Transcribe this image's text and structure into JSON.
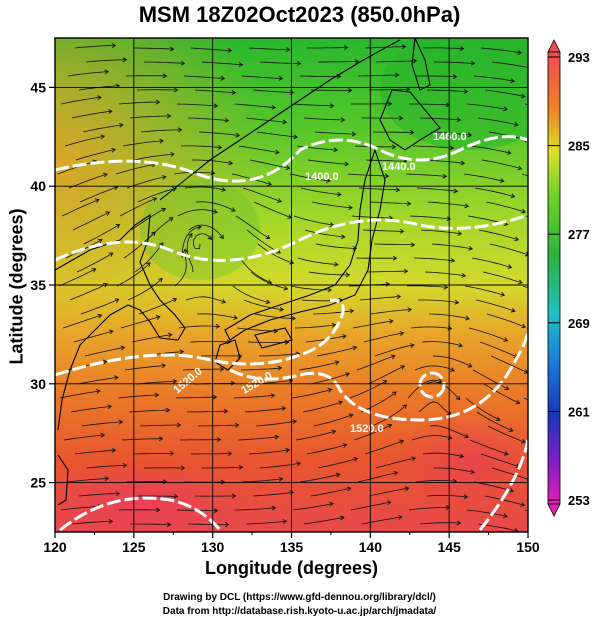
{
  "title": "MSM 18Z02Oct2023 (850.0hPa)",
  "axes": {
    "xlabel": "Longitude (degrees)",
    "ylabel": "Latitude  (degrees)",
    "x_ticks": [
      "120",
      "125",
      "130",
      "135",
      "140",
      "145",
      "150"
    ],
    "y_ticks": [
      "25",
      "30",
      "35",
      "40",
      "45"
    ],
    "xlim": [
      120,
      150
    ],
    "ylim": [
      22.5,
      47.5
    ]
  },
  "colorbar": {
    "ticks": [
      "293",
      "285",
      "277",
      "269",
      "261",
      "253"
    ],
    "range": [
      253,
      293
    ]
  },
  "contour_labels": [
    "1400.0",
    "1440.0",
    "1460.0",
    "1520.0",
    "1520.0",
    "1520.0"
  ],
  "credits": {
    "line1": "Drawing by DCL (https://www.gfd-dennou.org/library/dcl/)",
    "line2": "Data from http://database.rish.kyoto-u.ac.jp/arch/jmadata/"
  },
  "colors": {
    "cold": "#2db52d",
    "mid": "#d9e32a",
    "warm": "#e96a22",
    "hot": "#e8394b",
    "contour": "#ffffff"
  }
}
